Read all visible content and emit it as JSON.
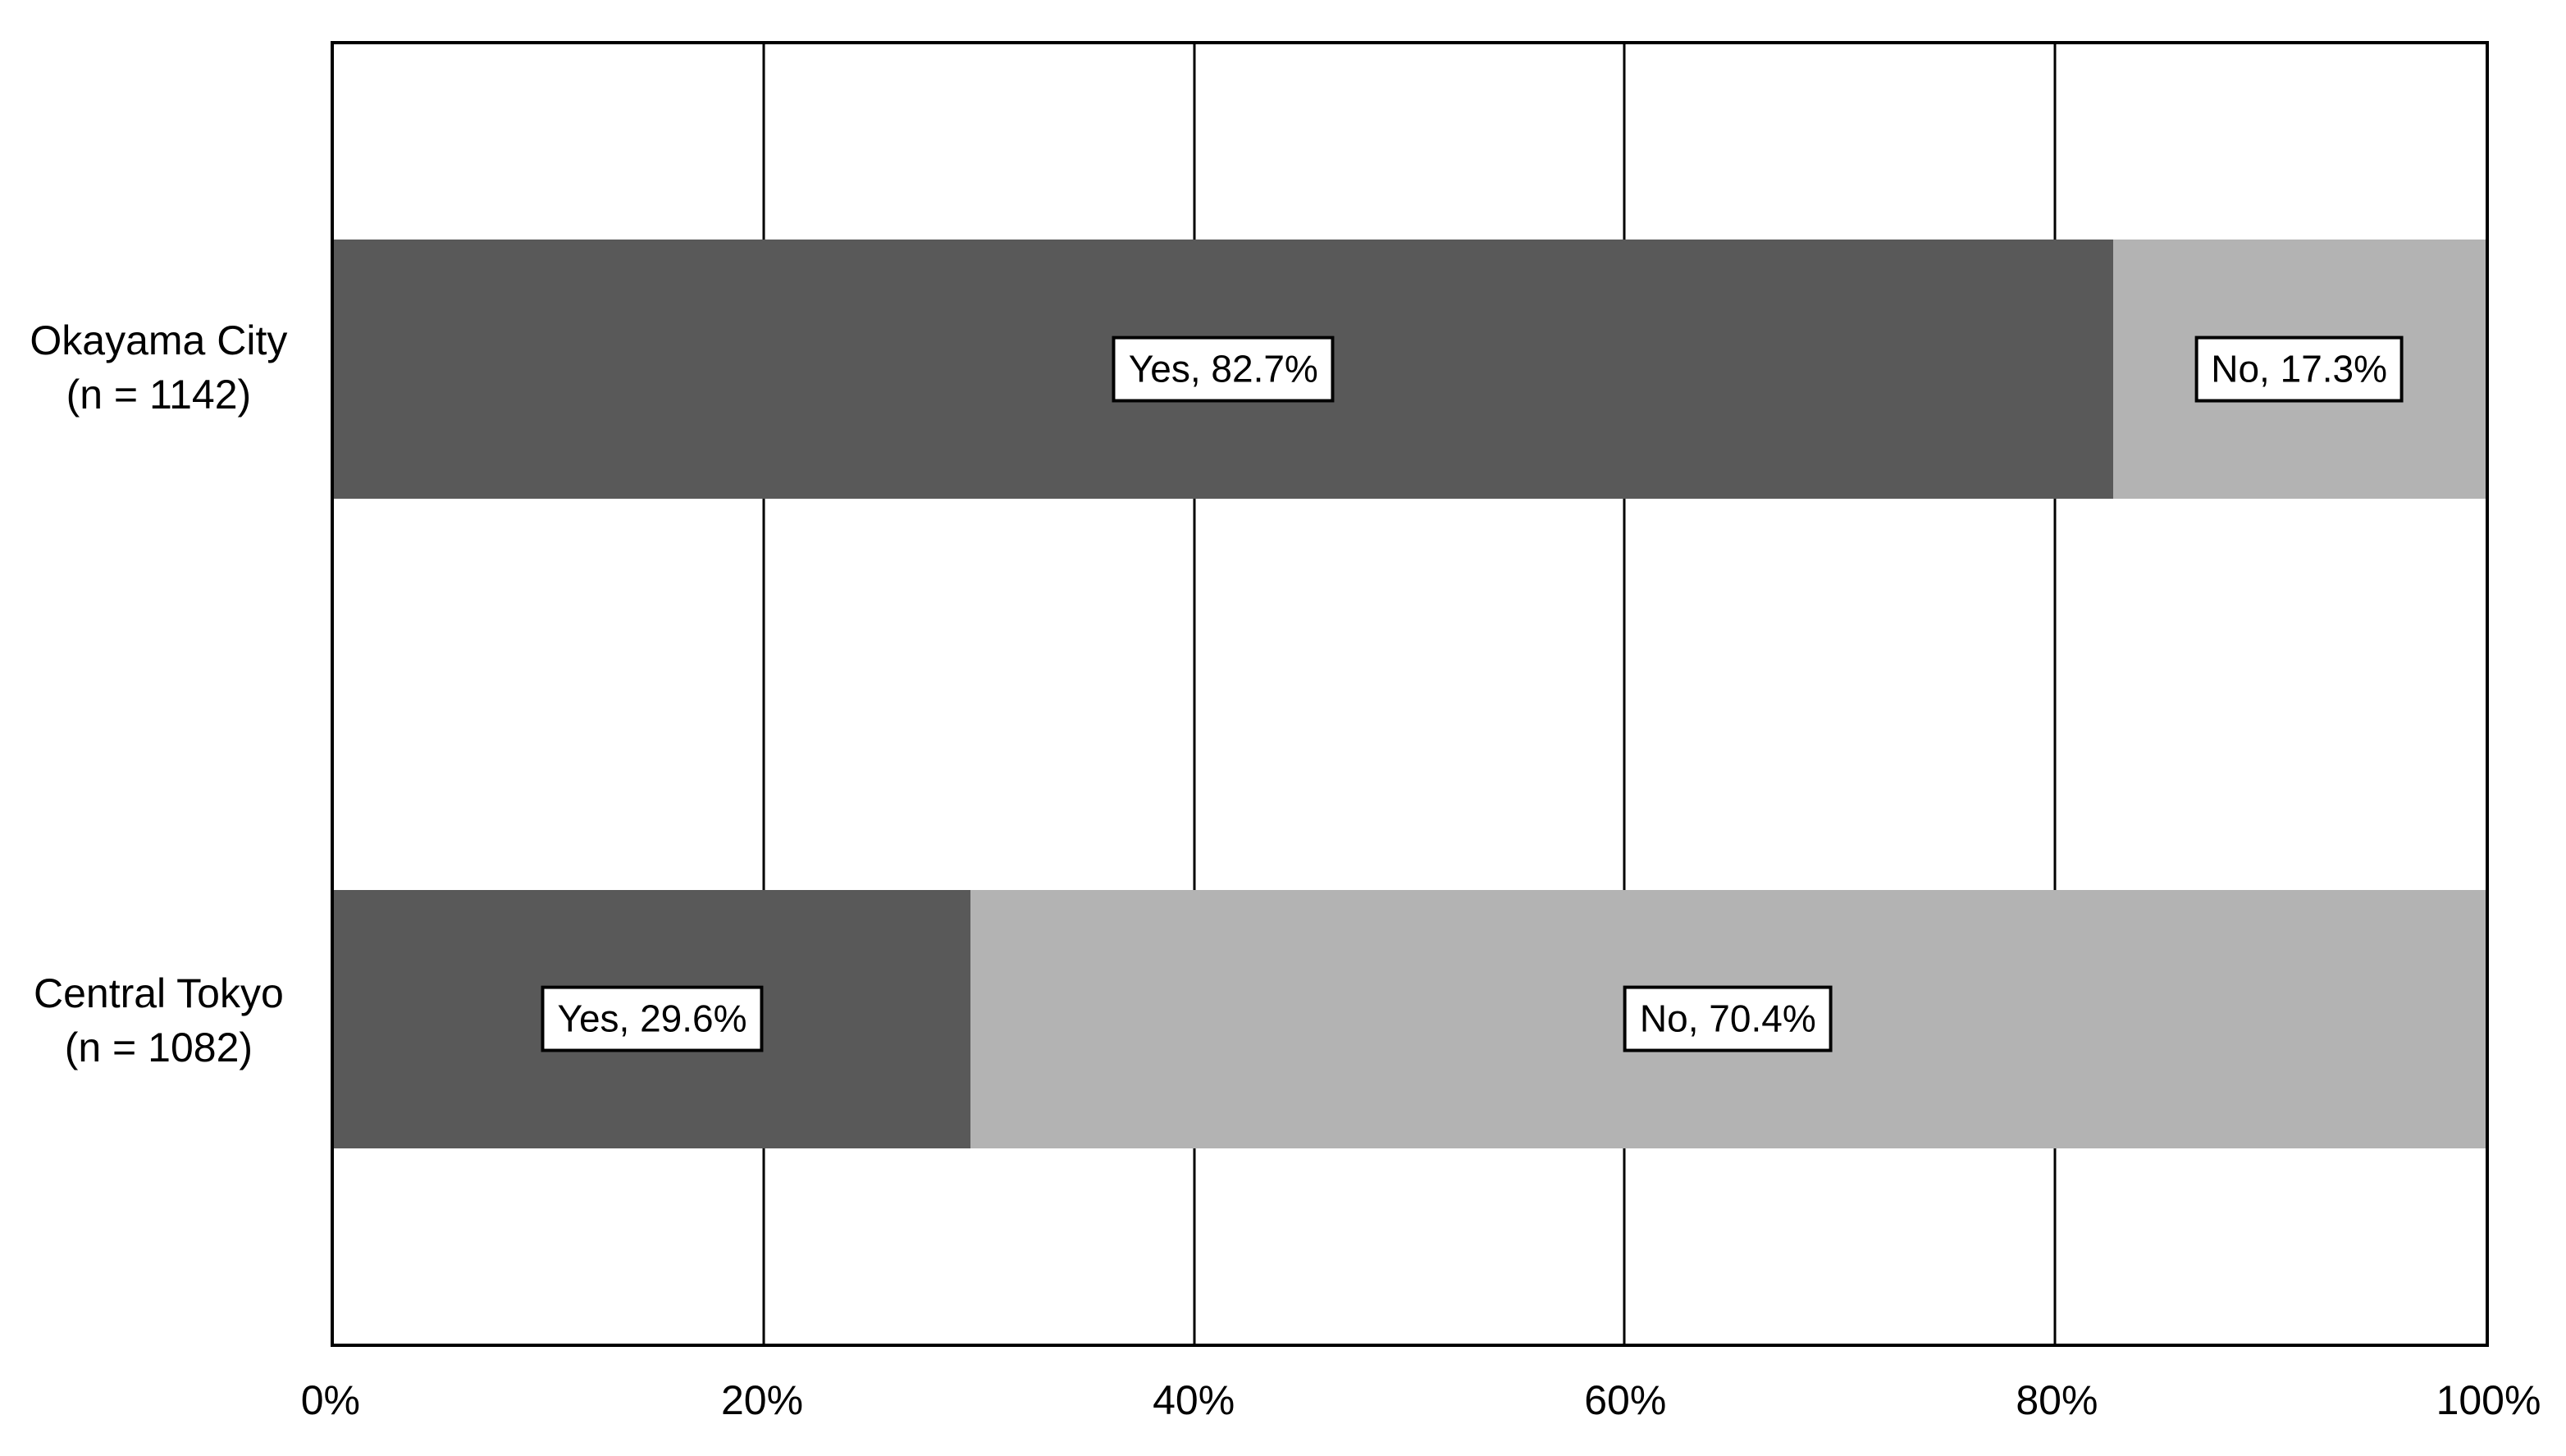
{
  "chart_data": {
    "type": "bar",
    "orientation": "horizontal",
    "stacked": true,
    "unit": "%",
    "title": "",
    "xlabel": "",
    "ylabel": "",
    "categories": [
      "Okayama City (n = 1142)",
      "Central Tokyo (n = 1082)"
    ],
    "category_lines": [
      [
        "Okayama City",
        "(n = 1142)"
      ],
      [
        "Central Tokyo",
        "(n = 1082)"
      ]
    ],
    "series": [
      {
        "name": "Yes",
        "values": [
          82.7,
          29.6
        ],
        "color": "#595959"
      },
      {
        "name": "No",
        "values": [
          17.3,
          70.4
        ],
        "color": "#b3b3b3"
      }
    ],
    "segment_labels": [
      [
        "Yes, 82.7%",
        "No, 17.3%"
      ],
      [
        "Yes, 29.6%",
        "No, 70.4%"
      ]
    ],
    "x_ticks": [
      "0%",
      "20%",
      "40%",
      "60%",
      "80%",
      "100%"
    ],
    "xlim": [
      0,
      100
    ],
    "grid": "vertical",
    "legend": "none",
    "styles": {
      "background": "#ffffff",
      "plot_border_color": "#000000",
      "gridline_color": "#000000",
      "bar_color_yes": "#595959",
      "bar_color_no": "#b3b3b3",
      "label_box_bg": "#ffffff",
      "label_box_border": "#000000",
      "text_color": "#000000"
    }
  }
}
